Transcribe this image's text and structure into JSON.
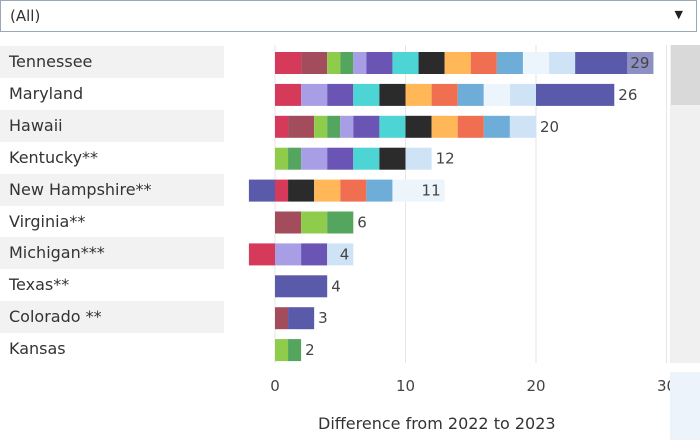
{
  "filter": {
    "value": "(All)",
    "caret": "▼"
  },
  "chart_data": {
    "type": "bar",
    "orientation": "horizontal",
    "stacked": true,
    "xlabel": "Difference from 2022 to 2023",
    "xlim": [
      -2,
      30
    ],
    "xticks": [
      "0",
      "10",
      "20",
      "30"
    ],
    "grid": true,
    "categories": [
      "Tennessee",
      "Maryland",
      "Hawaii",
      "Kentucky**",
      "New Hampshire**",
      "Virginia**",
      "Michigan***",
      "Texas**",
      "Colorado **",
      "Kansas"
    ],
    "totals": [
      "29",
      "26",
      "20",
      "12",
      "11",
      "6",
      "4",
      "4",
      "3",
      "2"
    ],
    "bars": [
      {
        "segments": [
          [
            0,
            2,
            "#d63a5a"
          ],
          [
            2,
            4,
            "#a34d5c"
          ],
          [
            4,
            5,
            "#8fcc4b"
          ],
          [
            5,
            6,
            "#54a55e"
          ],
          [
            6,
            7,
            "#a79ee6"
          ],
          [
            7,
            9,
            "#6a55b4"
          ],
          [
            9,
            11,
            "#4dd4d4"
          ],
          [
            11,
            13,
            "#2b2b2b"
          ],
          [
            13,
            15,
            "#ffb757"
          ],
          [
            15,
            17,
            "#f06f50"
          ],
          [
            17,
            19,
            "#6fadd9"
          ],
          [
            19,
            21,
            "#edf5fc"
          ],
          [
            21,
            23,
            "#cfe3f7"
          ],
          [
            23,
            27,
            "#5a5aaa"
          ],
          [
            27,
            29,
            "#8e90c4"
          ]
        ]
      },
      {
        "segments": [
          [
            0,
            2,
            "#d63a5a"
          ],
          [
            2,
            4,
            "#a79ee6"
          ],
          [
            4,
            6,
            "#6a55b4"
          ],
          [
            6,
            8,
            "#4dd4d4"
          ],
          [
            8,
            10,
            "#2b2b2b"
          ],
          [
            10,
            12,
            "#ffb757"
          ],
          [
            12,
            14,
            "#f06f50"
          ],
          [
            14,
            16,
            "#6fadd9"
          ],
          [
            16,
            18,
            "#edf5fc"
          ],
          [
            18,
            20,
            "#cfe3f7"
          ],
          [
            20,
            26,
            "#5a5aaa"
          ]
        ]
      },
      {
        "segments": [
          [
            0,
            1,
            "#d63a5a"
          ],
          [
            1,
            3,
            "#a34d5c"
          ],
          [
            3,
            4,
            "#8fcc4b"
          ],
          [
            4,
            5,
            "#54a55e"
          ],
          [
            5,
            6,
            "#a79ee6"
          ],
          [
            6,
            8,
            "#6a55b4"
          ],
          [
            8,
            10,
            "#4dd4d4"
          ],
          [
            10,
            12,
            "#2b2b2b"
          ],
          [
            12,
            14,
            "#ffb757"
          ],
          [
            14,
            16,
            "#f06f50"
          ],
          [
            16,
            18,
            "#6fadd9"
          ],
          [
            18,
            20,
            "#cfe3f7"
          ]
        ]
      },
      {
        "segments": [
          [
            0,
            1,
            "#8fcc4b"
          ],
          [
            1,
            2,
            "#54a55e"
          ],
          [
            2,
            4,
            "#a79ee6"
          ],
          [
            4,
            6,
            "#6a55b4"
          ],
          [
            6,
            8,
            "#4dd4d4"
          ],
          [
            8,
            10,
            "#2b2b2b"
          ],
          [
            10,
            12,
            "#cfe3f7"
          ]
        ]
      },
      {
        "segments": [
          [
            -2,
            0,
            "#5a5aaa"
          ],
          [
            0,
            1,
            "#d63a5a"
          ],
          [
            1,
            3,
            "#2b2b2b"
          ],
          [
            3,
            5,
            "#ffb757"
          ],
          [
            5,
            7,
            "#f06f50"
          ],
          [
            7,
            9,
            "#6fadd9"
          ],
          [
            9,
            11,
            "#edf5fc"
          ],
          [
            11,
            13,
            "#edf5fc"
          ]
        ]
      },
      {
        "segments": [
          [
            0,
            2,
            "#a34d5c"
          ],
          [
            2,
            4,
            "#8fcc4b"
          ],
          [
            4,
            6,
            "#54a55e"
          ]
        ]
      },
      {
        "segments": [
          [
            -2,
            0,
            "#d63a5a"
          ],
          [
            0,
            2,
            "#a79ee6"
          ],
          [
            2,
            4,
            "#6a55b4"
          ],
          [
            4,
            6,
            "#cfe3f7"
          ]
        ]
      },
      {
        "segments": [
          [
            0,
            4,
            "#5a5aaa"
          ]
        ]
      },
      {
        "segments": [
          [
            0,
            1,
            "#a34d5c"
          ],
          [
            1,
            3,
            "#5a5aaa"
          ]
        ]
      },
      {
        "segments": [
          [
            0,
            1,
            "#8fcc4b"
          ],
          [
            1,
            2,
            "#54a55e"
          ]
        ]
      }
    ],
    "label_inside": [
      true,
      false,
      false,
      false,
      true,
      false,
      true,
      false,
      false,
      false
    ]
  }
}
